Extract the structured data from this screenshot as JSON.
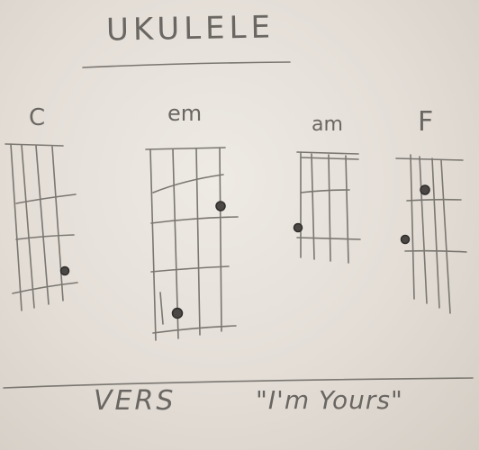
{
  "title": "UKULELE",
  "chords": [
    {
      "name": "C"
    },
    {
      "name": "em"
    },
    {
      "name": "am"
    },
    {
      "name": "F"
    }
  ],
  "footer": {
    "section": "VERS",
    "song": "\"I'm Yours\""
  }
}
